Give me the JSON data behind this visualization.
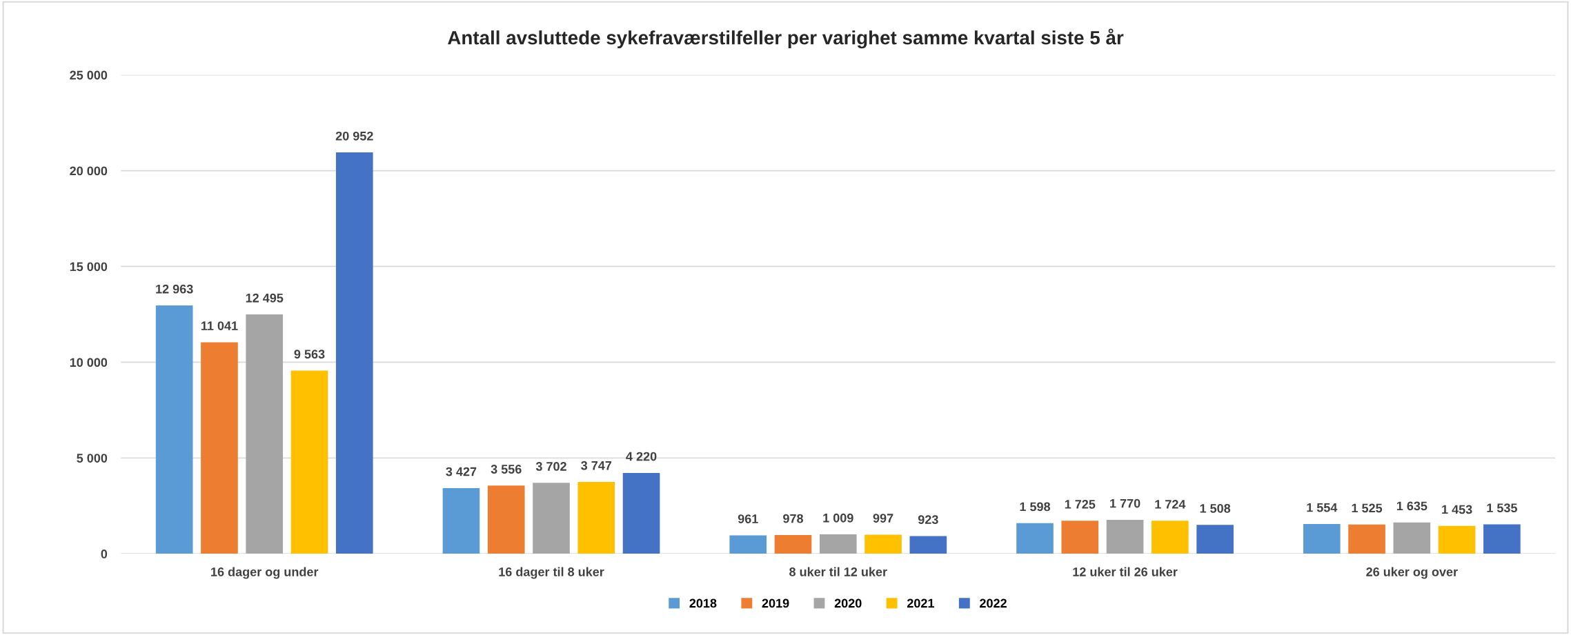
{
  "chart_data": {
    "type": "bar",
    "title": "Antall avsluttede sykefraværstilfeller per varighet samme kvartal siste 5 år",
    "categories": [
      "16 dager og under",
      "16 dager til 8 uker",
      "8 uker til 12 uker",
      "12 uker til 26 uker",
      "26 uker og over"
    ],
    "series": [
      {
        "name": "2018",
        "color": "#5b9bd5",
        "values": [
          12963,
          3427,
          961,
          1598,
          1554
        ],
        "value_labels": [
          "12 963",
          "3 427",
          "961",
          "1 598",
          "1 554"
        ]
      },
      {
        "name": "2019",
        "color": "#ed7d31",
        "values": [
          11041,
          3556,
          978,
          1725,
          1525
        ],
        "value_labels": [
          "11 041",
          "3 556",
          "978",
          "1 725",
          "1 525"
        ]
      },
      {
        "name": "2020",
        "color": "#a5a5a5",
        "values": [
          12495,
          3702,
          1009,
          1770,
          1635
        ],
        "value_labels": [
          "12 495",
          "3 702",
          "1 009",
          "1 770",
          "1 635"
        ]
      },
      {
        "name": "2021",
        "color": "#ffc000",
        "values": [
          9563,
          3747,
          997,
          1724,
          1453
        ],
        "value_labels": [
          "9 563",
          "3 747",
          "997",
          "1 724",
          "1 453"
        ]
      },
      {
        "name": "2022",
        "color": "#4472c4",
        "values": [
          20952,
          4220,
          923,
          1508,
          1535
        ],
        "value_labels": [
          "20 952",
          "4 220",
          "923",
          "1 508",
          "1 535"
        ]
      }
    ],
    "ylim": [
      0,
      25000
    ],
    "yticks": [
      0,
      {
        "value": 5000,
        "label": "5 000"
      },
      {
        "value": 10000,
        "label": "10 000"
      },
      {
        "value": 15000,
        "label": "15 000"
      },
      {
        "value": 20000,
        "label": "20 000"
      },
      {
        "value": 25000,
        "label": "25 000"
      }
    ],
    "grid": "y",
    "legend": "bottom"
  }
}
